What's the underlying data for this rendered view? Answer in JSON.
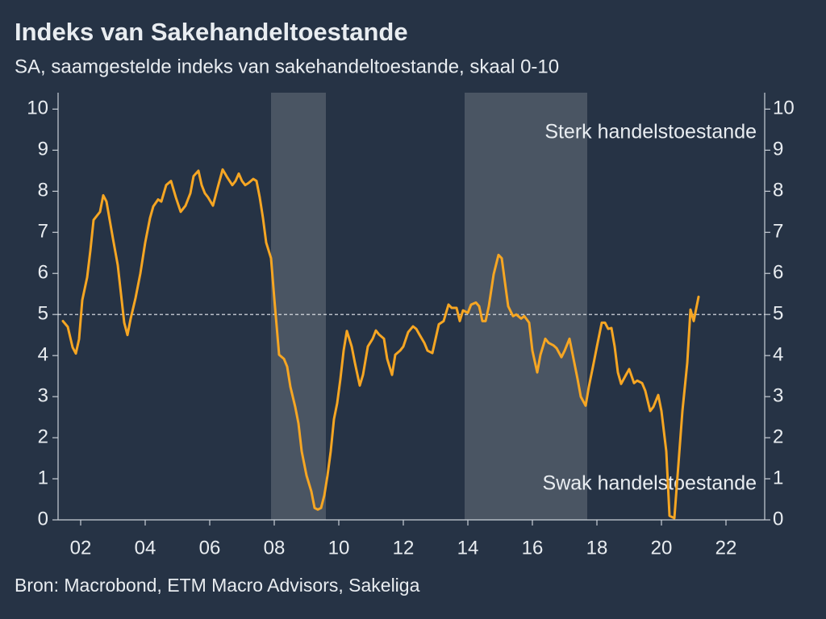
{
  "chart_data": {
    "type": "line",
    "title": "Indeks van Sakehandeltoestande",
    "subtitle": "SA, saamgestelde indeks van sakehandeltoestande, skaal 0-10",
    "source": "Bron: Macrobond, ETM Macro Advisors, Sakeliga",
    "annotations": [
      "Sterk handelstoestande",
      "Swak handelstoestande"
    ],
    "color": "#f6a623",
    "xlim": [
      2001.3,
      2023.2
    ],
    "xticks": [
      {
        "value": 2002,
        "label": "02"
      },
      {
        "value": 2004,
        "label": "04"
      },
      {
        "value": 2006,
        "label": "06"
      },
      {
        "value": 2008,
        "label": "08"
      },
      {
        "value": 2010,
        "label": "10"
      },
      {
        "value": 2012,
        "label": "12"
      },
      {
        "value": 2014,
        "label": "14"
      },
      {
        "value": 2016,
        "label": "16"
      },
      {
        "value": 2018,
        "label": "18"
      },
      {
        "value": 2020,
        "label": "20"
      },
      {
        "value": 2022,
        "label": "22"
      }
    ],
    "ylim": [
      0,
      10.4
    ],
    "yticks": [
      0,
      1,
      2,
      3,
      4,
      5,
      6,
      7,
      8,
      9,
      10
    ],
    "y2lim": [
      0,
      10.4
    ],
    "y2ticks": [
      0,
      1,
      2,
      3,
      4,
      5,
      6,
      7,
      8,
      9,
      10
    ],
    "reference_line": 5,
    "shaded_ranges": [
      [
        2007.9,
        2009.6
      ],
      [
        2013.9,
        2017.7
      ]
    ],
    "x": [
      2001.45,
      2001.6,
      2001.75,
      2001.85,
      2001.95,
      2002.05,
      2002.2,
      2002.3,
      2002.4,
      2002.5,
      2002.6,
      2002.7,
      2002.8,
      2002.9,
      2003.0,
      2003.15,
      2003.25,
      2003.35,
      2003.45,
      2003.55,
      2003.7,
      2003.85,
      2004.0,
      2004.15,
      2004.25,
      2004.4,
      2004.5,
      2004.65,
      2004.8,
      2004.95,
      2005.1,
      2005.25,
      2005.4,
      2005.5,
      2005.65,
      2005.75,
      2005.85,
      2005.95,
      2006.1,
      2006.25,
      2006.4,
      2006.55,
      2006.7,
      2006.8,
      2006.9,
      2007.0,
      2007.1,
      2007.2,
      2007.35,
      2007.45,
      2007.55,
      2007.65,
      2007.75,
      2007.9,
      2008.0,
      2008.15,
      2008.3,
      2008.4,
      2008.5,
      2008.65,
      2008.75,
      2008.85,
      2009.0,
      2009.15,
      2009.25,
      2009.35,
      2009.45,
      2009.55,
      2009.65,
      2009.75,
      2009.85,
      2009.95,
      2010.05,
      2010.15,
      2010.25,
      2010.4,
      2010.5,
      2010.65,
      2010.75,
      2010.9,
      2011.05,
      2011.15,
      2011.25,
      2011.4,
      2011.5,
      2011.65,
      2011.75,
      2011.9,
      2012.0,
      2012.15,
      2012.3,
      2012.4,
      2012.5,
      2012.65,
      2012.75,
      2012.9,
      2013.0,
      2013.1,
      2013.25,
      2013.4,
      2013.5,
      2013.65,
      2013.75,
      2013.85,
      2014.0,
      2014.1,
      2014.25,
      2014.35,
      2014.45,
      2014.55,
      2014.65,
      2014.8,
      2014.95,
      2015.05,
      2015.15,
      2015.25,
      2015.4,
      2015.5,
      2015.65,
      2015.75,
      2015.9,
      2016.0,
      2016.15,
      2016.25,
      2016.4,
      2016.5,
      2016.65,
      2016.75,
      2016.9,
      2017.0,
      2017.15,
      2017.25,
      2017.4,
      2017.5,
      2017.65,
      2017.75,
      2017.9,
      2018.0,
      2018.15,
      2018.25,
      2018.35,
      2018.45,
      2018.55,
      2018.65,
      2018.75,
      2018.9,
      2019.0,
      2019.15,
      2019.25,
      2019.4,
      2019.5,
      2019.65,
      2019.75,
      2019.9,
      2020.0,
      2020.15,
      2020.25,
      2020.4,
      2020.5,
      2020.65,
      2020.8,
      2020.9,
      2021.0,
      2021.15
    ],
    "values": [
      4.84,
      4.7,
      4.2,
      4.05,
      4.4,
      5.35,
      5.9,
      6.55,
      7.3,
      7.4,
      7.5,
      7.9,
      7.75,
      7.3,
      6.85,
      6.2,
      5.5,
      4.8,
      4.5,
      4.9,
      5.4,
      6.0,
      6.75,
      7.35,
      7.63,
      7.8,
      7.75,
      8.15,
      8.25,
      7.85,
      7.5,
      7.65,
      7.95,
      8.37,
      8.5,
      8.15,
      7.95,
      7.85,
      7.65,
      8.1,
      8.53,
      8.33,
      8.15,
      8.25,
      8.43,
      8.25,
      8.15,
      8.2,
      8.3,
      8.25,
      7.85,
      7.35,
      6.75,
      6.37,
      5.4,
      4.02,
      3.92,
      3.73,
      3.24,
      2.75,
      2.35,
      1.67,
      1.08,
      0.69,
      0.29,
      0.25,
      0.29,
      0.59,
      1.08,
      1.67,
      2.45,
      2.84,
      3.43,
      4.12,
      4.6,
      4.22,
      3.82,
      3.27,
      3.53,
      4.22,
      4.41,
      4.61,
      4.51,
      4.41,
      3.92,
      3.53,
      4.02,
      4.12,
      4.22,
      4.57,
      4.71,
      4.65,
      4.51,
      4.31,
      4.12,
      4.06,
      4.41,
      4.76,
      4.84,
      5.24,
      5.16,
      5.16,
      4.84,
      5.1,
      5.04,
      5.24,
      5.29,
      5.2,
      4.84,
      4.84,
      5.2,
      5.98,
      6.45,
      6.37,
      5.78,
      5.2,
      4.96,
      5.0,
      4.9,
      4.96,
      4.8,
      4.12,
      3.59,
      4.02,
      4.41,
      4.31,
      4.25,
      4.18,
      3.96,
      4.12,
      4.41,
      4.02,
      3.43,
      3.0,
      2.78,
      3.24,
      3.82,
      4.22,
      4.8,
      4.8,
      4.65,
      4.67,
      4.22,
      3.59,
      3.31,
      3.53,
      3.67,
      3.33,
      3.39,
      3.33,
      3.14,
      2.65,
      2.75,
      3.04,
      2.65,
      1.67,
      0.1,
      0.04,
      1.08,
      2.65,
      3.82,
      5.12,
      4.84,
      5.43
    ]
  }
}
